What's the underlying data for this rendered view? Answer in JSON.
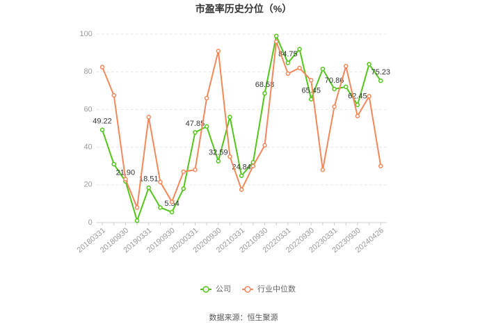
{
  "chart_data": {
    "type": "line",
    "title": "市盈率历史分位（%）",
    "categories": [
      "20180331",
      null,
      "20180930",
      null,
      "20190331",
      null,
      "20190930",
      null,
      "20200331",
      null,
      "20200930",
      null,
      "20210331",
      null,
      "20210930",
      null,
      "20220331",
      null,
      "20220930",
      null,
      "20230331",
      null,
      "20230930",
      null,
      "20240426"
    ],
    "series": [
      {
        "name": "公司",
        "color": "#52c41a",
        "values": [
          49.22,
          31,
          21.9,
          1,
          18.51,
          8,
          5.54,
          18,
          47.85,
          51,
          32.59,
          56,
          24.84,
          32,
          68.58,
          99,
          84.75,
          92,
          65.45,
          81.5,
          70.86,
          72,
          62.45,
          84,
          75.23
        ],
        "value_labels": [
          "49.22",
          null,
          "21.90",
          null,
          "18.51",
          null,
          "5.54",
          null,
          "47.85",
          null,
          "32.59",
          null,
          "24.84",
          null,
          "68.58",
          null,
          "84.75",
          null,
          "65.45",
          null,
          "70.86",
          null,
          "62.45",
          null,
          "75.23"
        ]
      },
      {
        "name": "行业中位数",
        "color": "#f4875a",
        "values": [
          82.5,
          67.5,
          23,
          8,
          56,
          21.5,
          11,
          27,
          28,
          66,
          91,
          35,
          17.5,
          30,
          41,
          96,
          79,
          82,
          75.5,
          28,
          61.5,
          83,
          56.5,
          67,
          30
        ]
      }
    ],
    "ylim": [
      0,
      100
    ],
    "yticks": [
      0,
      20,
      40,
      60,
      80,
      100
    ],
    "grid": true,
    "source": "数据来源：恒生聚源"
  }
}
